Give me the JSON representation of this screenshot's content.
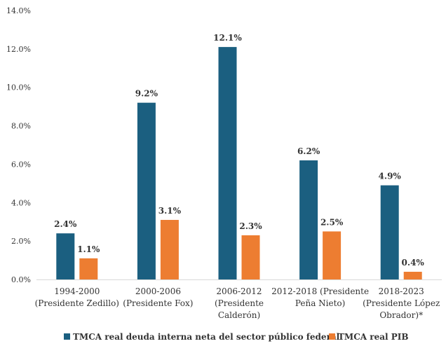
{
  "chart_data": {
    "type": "bar",
    "categories": [
      [
        "1994-2000",
        "(Presidente Zedillo)"
      ],
      [
        "2000-2006",
        "(Presidente Fox)"
      ],
      [
        "2006-2012",
        "(Presidente",
        "Calderón)"
      ],
      [
        "2012-2018 (Presidente",
        "Peña Nieto)"
      ],
      [
        "2018-2023",
        "(Presidente López",
        "Obrador)*"
      ]
    ],
    "series": [
      {
        "name": "TMCA real deuda interna neta del sector público federal",
        "color": "#1b5f80",
        "values": [
          2.4,
          9.2,
          12.1,
          6.2,
          4.9
        ],
        "labels": [
          "2.4%",
          "9.2%",
          "12.1%",
          "6.2%",
          "4.9%"
        ]
      },
      {
        "name": "TMCA real PIB",
        "color": "#ed7d31",
        "values": [
          1.1,
          3.1,
          2.3,
          2.5,
          0.4
        ],
        "labels": [
          "1.1%",
          "3.1%",
          "2.3%",
          "2.5%",
          "0.4%"
        ]
      }
    ],
    "yticks": [
      0,
      2,
      4,
      6,
      8,
      10,
      12,
      14
    ],
    "ytick_labels": [
      "0.0%",
      "2.0%",
      "4.0%",
      "6.0%",
      "8.0%",
      "10.0%",
      "12.0%",
      "14.0%"
    ],
    "ylim": [
      0,
      14
    ],
    "grid": false,
    "legend_position": "bottom",
    "axis_color": "#d9d9d9"
  }
}
